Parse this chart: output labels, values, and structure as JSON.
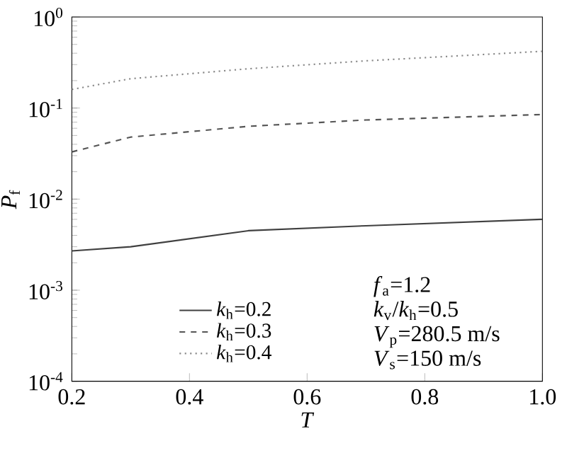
{
  "chart_data": {
    "type": "line",
    "xlabel": "*T*",
    "ylabel": "*P*$_{f}$",
    "log": "y",
    "x": [
      0.2,
      0.3,
      0.5,
      0.7,
      1.0
    ],
    "series": [
      {
        "name": "*k*$_{h}$=0.2",
        "color": "#404040",
        "line_style": "solid",
        "values": [
          0.0027,
          0.003,
          0.0045,
          0.0051,
          0.006
        ]
      },
      {
        "name": "*k*$_{h}$=0.3",
        "color": "#555555",
        "line_style": "dashed",
        "values": [
          0.033,
          0.048,
          0.063,
          0.074,
          0.085
        ]
      },
      {
        "name": "*k*$_{h}$=0.4",
        "color": "#888888",
        "line_style": "dotted",
        "values": [
          0.16,
          0.21,
          0.27,
          0.33,
          0.42
        ]
      }
    ],
    "xlim": [
      0.2,
      1.0
    ],
    "xticks": [
      0.2,
      0.4,
      0.6,
      0.8,
      {
        "value": 1,
        "label": "1.0"
      }
    ],
    "ylim": [
      0.0001,
      1
    ],
    "yticks": [
      {
        "value": 0.0001,
        "label": "10$^{-4}$"
      },
      {
        "value": 0.001,
        "label": "10$^{-3}$"
      },
      {
        "value": 0.01,
        "label": "10$^{-2}$"
      },
      {
        "value": 0.1,
        "label": "10$^{-1}$"
      },
      {
        "value": 1,
        "label": "10$^{0}$"
      }
    ],
    "legend": "bottom",
    "grid": false,
    "marker": "none",
    "annotations": [
      "*f*$_{a}$=1.2",
      "*k*$_{v}$/*k*$_{h}$=0.5",
      "*V*$_{p}$=280.5 m/s",
      "*V*$_{s}$=150 m/s"
    ]
  }
}
